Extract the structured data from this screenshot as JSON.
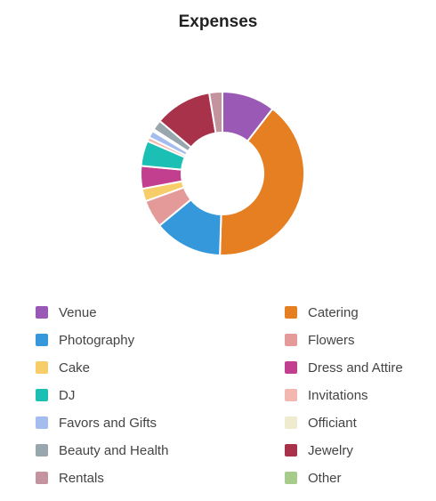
{
  "chart_data": {
    "type": "pie",
    "title": "Expenses",
    "donut": true,
    "legend_position": "bottom",
    "slices": [
      {
        "name": "Venue",
        "value": 10.5,
        "color": "#9B59B6"
      },
      {
        "name": "Catering",
        "value": 40.0,
        "color": "#E67E22"
      },
      {
        "name": "Photography",
        "value": 13.5,
        "color": "#3498DB"
      },
      {
        "name": "Flowers",
        "value": 5.5,
        "color": "#E59A9A"
      },
      {
        "name": "Cake",
        "value": 2.5,
        "color": "#F7CD6A"
      },
      {
        "name": "Dress and Attire",
        "value": 4.5,
        "color": "#C13F8E"
      },
      {
        "name": "DJ",
        "value": 5.0,
        "color": "#1BBFB3"
      },
      {
        "name": "Invitations",
        "value": 0.8,
        "color": "#F2B8B0"
      },
      {
        "name": "Favors and Gifts",
        "value": 1.4,
        "color": "#A4BDEE"
      },
      {
        "name": "Officiant",
        "value": 0.4,
        "color": "#EFEBCF"
      },
      {
        "name": "Beauty and Health",
        "value": 2.0,
        "color": "#98A7AE"
      },
      {
        "name": "Jewelry",
        "value": 11.3,
        "color": "#A8324A"
      },
      {
        "name": "Rentals",
        "value": 2.6,
        "color": "#C3949F"
      },
      {
        "name": "Other",
        "value": 0.0,
        "color": "#A6CB8B"
      }
    ]
  }
}
